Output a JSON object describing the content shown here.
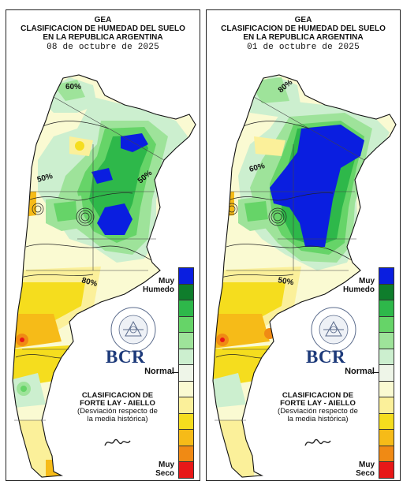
{
  "panels": [
    {
      "org": "GEA",
      "title_line1": "CLASIFICACION DE HUMEDAD DEL SUELO",
      "title_line2": "EN LA REPUBLICA ARGENTINA",
      "date": "08 de octubre de 2025",
      "contour_labels": [
        "60%",
        "50%",
        "50%",
        "80%"
      ]
    },
    {
      "org": "GEA",
      "title_line1": "CLASIFICACION DE HUMEDAD DEL SUELO",
      "title_line2": "EN LA REPUBLICA ARGENTINA",
      "date": "01 de octubre de 2025",
      "contour_labels": [
        "80%",
        "60%",
        "50%"
      ]
    }
  ],
  "legend": {
    "top_label_1": "Muy",
    "top_label_2": "Humedo",
    "middle_label": "Normal",
    "bottom_label_1": "Muy",
    "bottom_label_2": "Seco",
    "colors": [
      "#0a1ee0",
      "#0f7d2c",
      "#2eb84a",
      "#66d468",
      "#9ee39a",
      "#ccefcf",
      "#eef5e8",
      "#fafad2",
      "#fbf09a",
      "#f5dd1e",
      "#f6bb18",
      "#f08a14",
      "#e81818"
    ]
  },
  "seal": {
    "ring_text": "BOLSA DE COMERCIO DE ROSARIO"
  },
  "brand": "BCR",
  "classification": {
    "line1": "CLASIFICACION DE",
    "line2": "FORTE LAY - AIELLO",
    "line3": "(Desviación respecto de",
    "line4": "la media histórica)"
  }
}
